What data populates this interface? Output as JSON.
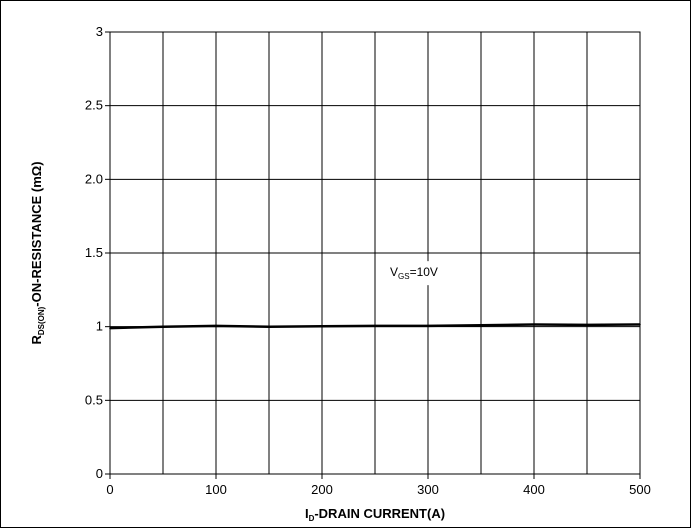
{
  "chart_data": {
    "type": "line",
    "xlabel": {
      "main": "I",
      "sub": "D",
      "rest": "-DRAIN CURRENT(A)"
    },
    "ylabel": {
      "main": "R",
      "sub": "DS(ON)",
      "rest": "-ON-RESISTANCE (mΩ)"
    },
    "xlim": [
      0,
      500
    ],
    "ylim": [
      0,
      3
    ],
    "x_ticks": [
      0,
      100,
      200,
      300,
      400,
      500
    ],
    "x_tick_labels": [
      "0",
      "100",
      "200",
      "300",
      "400",
      "500"
    ],
    "y_ticks": [
      0,
      0.5,
      1,
      1.5,
      2,
      2.5,
      3
    ],
    "y_tick_labels": [
      "0",
      "0.5",
      "1",
      "1.5",
      "2.0",
      "2.5",
      "3"
    ],
    "grid": true,
    "x_grid_step": 50,
    "y_grid_step": 0.5,
    "series": [
      {
        "name": "VGS=10V",
        "color": "#000000",
        "x": [
          0,
          50,
          100,
          150,
          200,
          250,
          300,
          350,
          400,
          450,
          500
        ],
        "y": [
          0.99,
          1.0,
          1.005,
          1.0,
          1.003,
          1.005,
          1.005,
          1.01,
          1.015,
          1.012,
          1.015
        ]
      }
    ],
    "annotation": {
      "main": "V",
      "sub": "GS",
      "rest": "=10V",
      "x": 300,
      "y": 1.37
    }
  }
}
